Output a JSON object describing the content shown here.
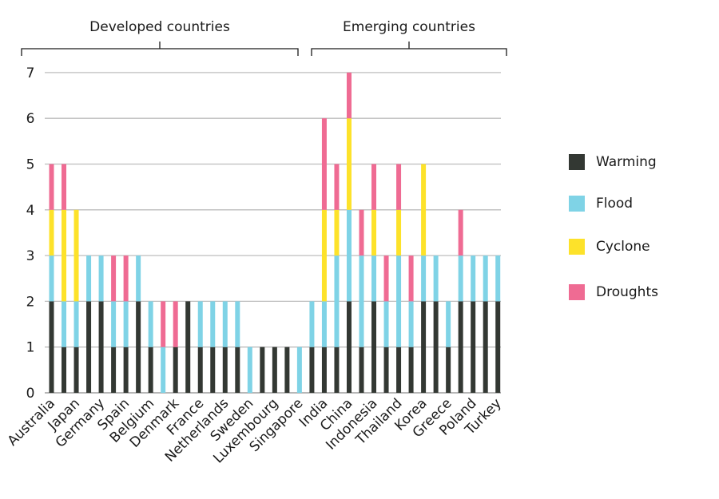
{
  "chart_data": {
    "type": "bar",
    "stacked": true,
    "ylim": [
      0,
      7
    ],
    "yticks": [
      "0",
      "1",
      "2",
      "3",
      "4",
      "5",
      "6",
      "7"
    ],
    "grid": "horizontal",
    "legend_position": "right",
    "groups": [
      {
        "label": "Developed countries",
        "first_index": 0,
        "last_index": 20
      },
      {
        "label": "Emerging countries",
        "first_index": 21,
        "last_index": 36
      }
    ],
    "series": [
      {
        "name": "Warming",
        "color": "#333833",
        "values": [
          2,
          1,
          1,
          2,
          2,
          1,
          1,
          2,
          1,
          0,
          1,
          2,
          1,
          1,
          1,
          1,
          0,
          1,
          1,
          1,
          0,
          1,
          1,
          1,
          2,
          1,
          2,
          1,
          1,
          1,
          2,
          2,
          1,
          2,
          2,
          2,
          2
        ]
      },
      {
        "name": "Flood",
        "color": "#7fd3e6",
        "values": [
          1,
          1,
          1,
          1,
          1,
          1,
          1,
          1,
          1,
          1,
          0,
          0,
          1,
          1,
          1,
          1,
          1,
          0,
          0,
          0,
          1,
          1,
          1,
          2,
          2,
          2,
          1,
          1,
          2,
          1,
          1,
          1,
          1,
          1,
          1,
          1,
          1
        ]
      },
      {
        "name": "Cyclone",
        "color": "#fde22a",
        "values": [
          1,
          2,
          2,
          0,
          0,
          0,
          0,
          0,
          0,
          0,
          0,
          0,
          0,
          0,
          0,
          0,
          0,
          0,
          0,
          0,
          0,
          0,
          2,
          1,
          2,
          0,
          1,
          0,
          1,
          0,
          2,
          0,
          0,
          0,
          0,
          0,
          0
        ]
      },
      {
        "name": "Droughts",
        "color": "#ef6b93",
        "values": [
          1,
          1,
          0,
          0,
          0,
          1,
          1,
          0,
          0,
          1,
          1,
          0,
          0,
          0,
          0,
          0,
          0,
          0,
          0,
          0,
          0,
          0,
          2,
          1,
          1,
          1,
          1,
          1,
          1,
          1,
          0,
          0,
          0,
          1,
          0,
          0,
          0
        ]
      }
    ],
    "x_labels": [
      {
        "text": "Australia",
        "index": 0
      },
      {
        "text": "Japan",
        "index": 2
      },
      {
        "text": "Germany",
        "index": 4
      },
      {
        "text": "Spain",
        "index": 6
      },
      {
        "text": "Belgium",
        "index": 8
      },
      {
        "text": "Denmark",
        "index": 10
      },
      {
        "text": "France",
        "index": 12
      },
      {
        "text": "Netherlands",
        "index": 14
      },
      {
        "text": "Sweden",
        "index": 16
      },
      {
        "text": "Luxembourg",
        "index": 18
      },
      {
        "text": "Singapore",
        "index": 20
      },
      {
        "text": "India",
        "index": 22
      },
      {
        "text": "China",
        "index": 24
      },
      {
        "text": "Indonesia",
        "index": 26
      },
      {
        "text": "Thailand",
        "index": 28
      },
      {
        "text": "Korea",
        "index": 30
      },
      {
        "text": "Greece",
        "index": 32
      },
      {
        "text": "Poland",
        "index": 34
      },
      {
        "text": "Turkey",
        "index": 36
      }
    ]
  }
}
